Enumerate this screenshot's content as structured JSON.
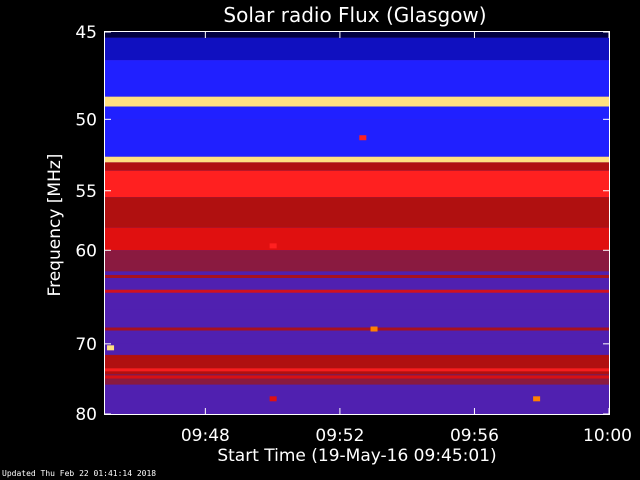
{
  "chart_data": {
    "type": "heatmap",
    "title": "Solar radio Flux (Glasgow)",
    "xlabel": "Start Time (19-May-16 09:45:01)",
    "ylabel": "Frequency [MHz]",
    "x_ticks": [
      "09:48",
      "09:52",
      "09:56",
      "10:00"
    ],
    "y_ticks": [
      45,
      50,
      55,
      60,
      70,
      80
    ],
    "y_scale": "reciprocal",
    "ylim_mhz": [
      45,
      80
    ],
    "xlim": [
      "09:45:01",
      "10:00"
    ],
    "colormap": [
      "#000040",
      "#1010c0",
      "#2020ff",
      "#5020b0",
      "#8a1a40",
      "#b01010",
      "#e01010",
      "#ff2020",
      "#ff8000",
      "#ffe080"
    ],
    "bands": [
      {
        "f0": 44.9,
        "f1": 45.3,
        "level": 0.05
      },
      {
        "f0": 45.3,
        "f1": 46.5,
        "level": 0.15
      },
      {
        "f0": 46.5,
        "f1": 48.6,
        "level": 0.22
      },
      {
        "f0": 48.6,
        "f1": 49.2,
        "level": 1.0
      },
      {
        "f0": 49.2,
        "f1": 50.0,
        "level": 0.24
      },
      {
        "f0": 50.0,
        "f1": 52.5,
        "level": 0.18
      },
      {
        "f0": 52.5,
        "f1": 52.9,
        "level": 0.95
      },
      {
        "f0": 52.9,
        "f1": 53.5,
        "level": 0.55
      },
      {
        "f0": 53.5,
        "f1": 55.5,
        "level": 0.78
      },
      {
        "f0": 55.5,
        "f1": 58.0,
        "level": 0.5
      },
      {
        "f0": 58.0,
        "f1": 60.0,
        "level": 0.62
      },
      {
        "f0": 60.0,
        "f1": 62.0,
        "level": 0.42
      },
      {
        "f0": 62.0,
        "f1": 66.0,
        "level": 0.38
      },
      {
        "f0": 66.0,
        "f1": 70.0,
        "level": 0.33
      },
      {
        "f0": 70.0,
        "f1": 71.5,
        "level": 0.36
      },
      {
        "f0": 71.5,
        "f1": 74.0,
        "level": 0.52
      },
      {
        "f0": 74.0,
        "f1": 75.5,
        "level": 0.4
      },
      {
        "f0": 75.5,
        "f1": 78.0,
        "level": 0.32
      },
      {
        "f0": 78.0,
        "f1": 80.2,
        "level": 0.3
      }
    ],
    "lines": [
      {
        "f": 62.5,
        "level": 0.6
      },
      {
        "f": 64.0,
        "level": 0.65
      },
      {
        "f": 68.2,
        "level": 0.55
      },
      {
        "f": 71.6,
        "level": 0.6
      },
      {
        "f": 73.4,
        "level": 0.75
      },
      {
        "f": 74.4,
        "level": 0.62
      }
    ],
    "bursts": [
      {
        "t": "09:50:00",
        "f": 59.6,
        "level": 0.75
      },
      {
        "t": "09:52:40",
        "f": 51.2,
        "level": 0.8
      },
      {
        "t": "09:53:00",
        "f": 68.2,
        "level": 0.85
      },
      {
        "t": "09:45:10",
        "f": 70.5,
        "level": 1.0
      },
      {
        "t": "09:57:50",
        "f": 77.6,
        "level": 0.9
      },
      {
        "t": "09:50:00",
        "f": 77.6,
        "level": 0.7
      }
    ]
  },
  "footer": "Updated Thu Feb 22 01:41:14 2018"
}
